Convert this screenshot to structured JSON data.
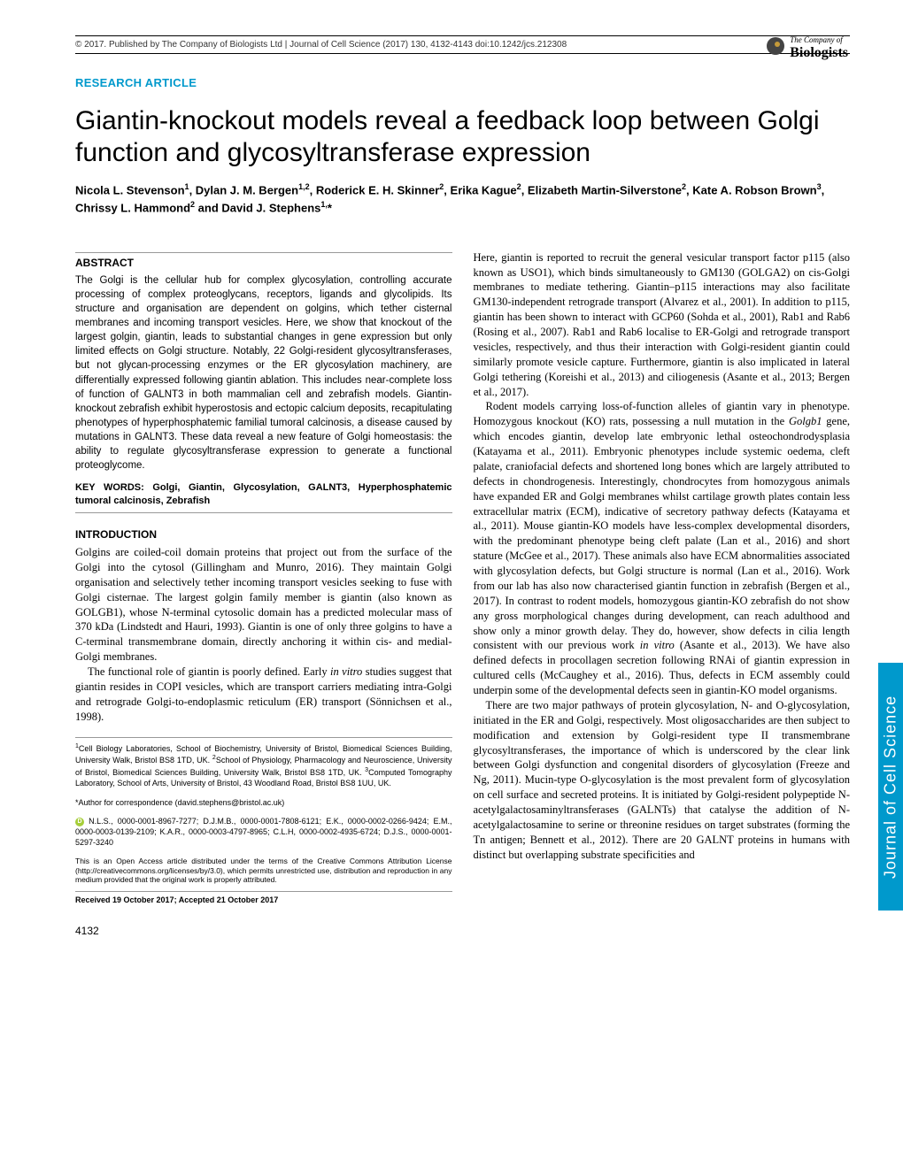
{
  "header": {
    "citation": "© 2017. Published by The Company of Biologists Ltd | Journal of Cell Science (2017) 130, 4132-4143 doi:10.1242/jcs.212308"
  },
  "publisher": {
    "line1": "The Company of",
    "line2": "Biologists"
  },
  "article_type": "RESEARCH ARTICLE",
  "title": "Giantin-knockout models reveal a feedback loop between Golgi function and glycosyltransferase expression",
  "authors_html": "Nicola L. Stevenson<sup>1</sup>, Dylan J. M. Bergen<sup>1,2</sup>, Roderick E. H. Skinner<sup>2</sup>, Erika Kague<sup>2</sup>, Elizabeth Martin-Silverstone<sup>2</sup>, Kate A. Robson Brown<sup>3</sup>, Chrissy L. Hammond<sup>2</sup> and David J. Stephens<sup>1,</sup>*",
  "abstract_heading": "ABSTRACT",
  "abstract_text": "The Golgi is the cellular hub for complex glycosylation, controlling accurate processing of complex proteoglycans, receptors, ligands and glycolipids. Its structure and organisation are dependent on golgins, which tether cisternal membranes and incoming transport vesicles. Here, we show that knockout of the largest golgin, giantin, leads to substantial changes in gene expression but only limited effects on Golgi structure. Notably, 22 Golgi-resident glycosyltransferases, but not glycan-processing enzymes or the ER glycosylation machinery, are differentially expressed following giantin ablation. This includes near-complete loss of function of GALNT3 in both mammalian cell and zebrafish models. Giantin-knockout zebrafish exhibit hyperostosis and ectopic calcium deposits, recapitulating phenotypes of hyperphosphatemic familial tumoral calcinosis, a disease caused by mutations in GALNT3. These data reveal a new feature of Golgi homeostasis: the ability to regulate glycosyltransferase expression to generate a functional proteoglycome.",
  "keywords_label": "KEY WORDS:",
  "keywords": "Golgi, Giantin, Glycosylation, GALNT3, Hyperphosphatemic tumoral calcinosis, Zebrafish",
  "intro_heading": "INTRODUCTION",
  "intro_p1": "Golgins are coiled-coil domain proteins that project out from the surface of the Golgi into the cytosol (Gillingham and Munro, 2016). They maintain Golgi organisation and selectively tether incoming transport vesicles seeking to fuse with Golgi cisternae. The largest golgin family member is giantin (also known as GOLGB1), whose N-terminal cytosolic domain has a predicted molecular mass of 370 kDa (Lindstedt and Hauri, 1993). Giantin is one of only three golgins to have a C-terminal transmembrane domain, directly anchoring it within cis- and medial-Golgi membranes.",
  "intro_p2": "The functional role of giantin is poorly defined. Early in vitro studies suggest that giantin resides in COPI vesicles, which are transport carriers mediating intra-Golgi and retrograde Golgi-to-endoplasmic reticulum (ER) transport (Sönnichsen et al., 1998).",
  "affiliations": "¹Cell Biology Laboratories, School of Biochemistry, University of Bristol, Biomedical Sciences Building, University Walk, Bristol BS8 1TD, UK. ²School of Physiology, Pharmacology and Neuroscience, University of Bristol, Biomedical Sciences Building, University Walk, Bristol BS8 1TD, UK. ³Computed Tomography Laboratory, School of Arts, University of Bristol, 43 Woodland Road, Bristol BS8 1UU, UK.",
  "correspondence": "*Author for correspondence (david.stephens@bristol.ac.uk)",
  "orcids": "N.L.S., 0000-0001-8967-7277; D.J.M.B., 0000-0001-7808-6121; E.K., 0000-0002-0266-9424; E.M., 0000-0003-0139-2109; K.A.R., 0000-0003-4797-8965; C.L.H, 0000-0002-4935-6724; D.J.S., 0000-0001-5297-3240",
  "license": "This is an Open Access article distributed under the terms of the Creative Commons Attribution License (http://creativecommons.org/licenses/by/3.0), which permits unrestricted use, distribution and reproduction in any medium provided that the original work is properly attributed.",
  "dates": "Received 19 October 2017; Accepted 21 October 2017",
  "col2_p1": "Here, giantin is reported to recruit the general vesicular transport factor p115 (also known as USO1), which binds simultaneously to GM130 (GOLGA2) on cis-Golgi membranes to mediate tethering. Giantin–p115 interactions may also facilitate GM130-independent retrograde transport (Alvarez et al., 2001). In addition to p115, giantin has been shown to interact with GCP60 (Sohda et al., 2001), Rab1 and Rab6 (Rosing et al., 2007). Rab1 and Rab6 localise to ER-Golgi and retrograde transport vesicles, respectively, and thus their interaction with Golgi-resident giantin could similarly promote vesicle capture. Furthermore, giantin is also implicated in lateral Golgi tethering (Koreishi et al., 2013) and ciliogenesis (Asante et al., 2013; Bergen et al., 2017).",
  "col2_p2": "Rodent models carrying loss-of-function alleles of giantin vary in phenotype. Homozygous knockout (KO) rats, possessing a null mutation in the Golgb1 gene, which encodes giantin, develop late embryonic lethal osteochondrodysplasia (Katayama et al., 2011). Embryonic phenotypes include systemic oedema, cleft palate, craniofacial defects and shortened long bones which are largely attributed to defects in chondrogenesis. Interestingly, chondrocytes from homozygous animals have expanded ER and Golgi membranes whilst cartilage growth plates contain less extracellular matrix (ECM), indicative of secretory pathway defects (Katayama et al., 2011). Mouse giantin-KO models have less-complex developmental disorders, with the predominant phenotype being cleft palate (Lan et al., 2016) and short stature (McGee et al., 2017). These animals also have ECM abnormalities associated with glycosylation defects, but Golgi structure is normal (Lan et al., 2016). Work from our lab has also now characterised giantin function in zebrafish (Bergen et al., 2017). In contrast to rodent models, homozygous giantin-KO zebrafish do not show any gross morphological changes during development, can reach adulthood and show only a minor growth delay. They do, however, show defects in cilia length consistent with our previous work in vitro (Asante et al., 2013). We have also defined defects in procollagen secretion following RNAi of giantin expression in cultured cells (McCaughey et al., 2016). Thus, defects in ECM assembly could underpin some of the developmental defects seen in giantin-KO model organisms.",
  "col2_p3": "There are two major pathways of protein glycosylation, N- and O-glycosylation, initiated in the ER and Golgi, respectively. Most oligosaccharides are then subject to modification and extension by Golgi-resident type II transmembrane glycosyltransferases, the importance of which is underscored by the clear link between Golgi dysfunction and congenital disorders of glycosylation (Freeze and Ng, 2011). Mucin-type O-glycosylation is the most prevalent form of glycosylation on cell surface and secreted proteins. It is initiated by Golgi-resident polypeptide N-acetylgalactosaminyltransferases (GALNTs) that catalyse the addition of N-acetylgalactosamine to serine or threonine residues on target substrates (forming the Tn antigen; Bennett et al., 2012). There are 20 GALNT proteins in humans with distinct but overlapping substrate specificities and",
  "page_number": "4132",
  "side_tab": "Journal of Cell Science",
  "colors": {
    "accent_blue": "#0099cc",
    "text": "#000000",
    "border_gray": "#999999"
  }
}
